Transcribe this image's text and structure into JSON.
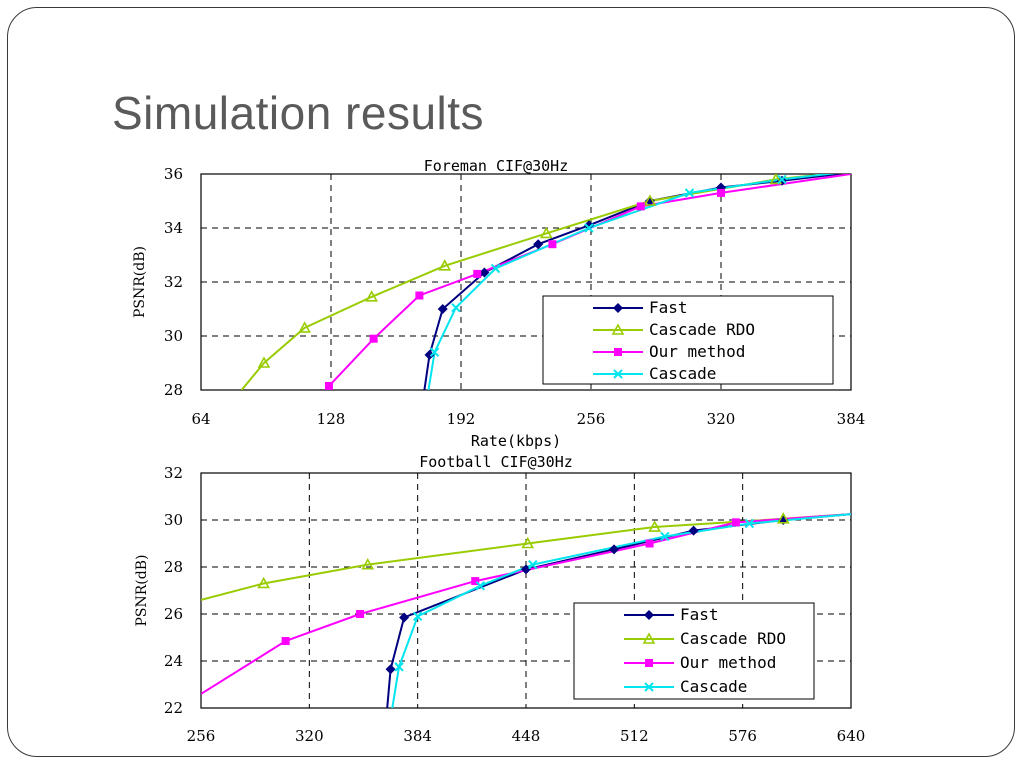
{
  "slide": {
    "title": "Simulation results"
  },
  "chart_data": [
    {
      "type": "line",
      "title": "Foreman CIF@30Hz",
      "xlabel": "Rate(kbps)",
      "ylabel": "PSNR(dB)",
      "xlim": [
        64,
        384
      ],
      "ylim": [
        28,
        36
      ],
      "xticks": [
        64,
        128,
        192,
        256,
        320,
        384
      ],
      "yticks": [
        28,
        30,
        32,
        34,
        36
      ],
      "grid": true,
      "legend_position": "bottom-right",
      "series": [
        {
          "name": "Fast",
          "color": "#000080",
          "marker": "diamond",
          "points": [
            [
              174,
              28
            ],
            [
              176.5,
              29.3
            ],
            [
              183,
              31
            ],
            [
              203.5,
              32.35
            ],
            [
              230,
              33.4
            ],
            [
              255,
              34.1
            ],
            [
              285,
              35
            ],
            [
              320,
              35.5
            ],
            [
              350,
              35.75
            ],
            [
              378,
              36
            ]
          ]
        },
        {
          "name": "Cascade RDO",
          "color": "#99CC00",
          "marker": "triangle",
          "points": [
            [
              84,
              28
            ],
            [
              95,
              29
            ],
            [
              115,
              30.3
            ],
            [
              148,
              31.45
            ],
            [
              184,
              32.6
            ],
            [
              234,
              33.8
            ],
            [
              285,
              35
            ],
            [
              347,
              35.8
            ],
            [
              384,
              36.1
            ]
          ]
        },
        {
          "name": "Our method",
          "color": "#FF00FF",
          "marker": "square",
          "points": [
            [
              127,
              28.15
            ],
            [
              149,
              29.9
            ],
            [
              171.5,
              31.5
            ],
            [
              200,
              32.3
            ],
            [
              237,
              33.4
            ],
            [
              280.5,
              34.8
            ],
            [
              320,
              35.3
            ],
            [
              384,
              36
            ]
          ]
        },
        {
          "name": "Cascade",
          "color": "#00E5EE",
          "marker": "x",
          "points": [
            [
              176,
              28
            ],
            [
              179,
              29.4
            ],
            [
              189.5,
              31.05
            ],
            [
              209,
              32.5
            ],
            [
              255,
              34
            ],
            [
              304.5,
              35.3
            ],
            [
              350,
              35.8
            ],
            [
              378,
              36.05
            ]
          ]
        }
      ]
    },
    {
      "type": "line",
      "title": "Football CIF@30Hz",
      "xlabel": "Rate(kbps)",
      "ylabel": "PSNR(dB)",
      "xlim": [
        256,
        640
      ],
      "ylim": [
        22,
        32
      ],
      "xticks": [
        256,
        320,
        384,
        448,
        512,
        576,
        640
      ],
      "yticks": [
        22,
        24,
        26,
        28,
        30,
        32
      ],
      "grid": true,
      "legend_position": "bottom-right",
      "series": [
        {
          "name": "Fast",
          "color": "#000080",
          "marker": "diamond",
          "points": [
            [
              366,
              22
            ],
            [
              368,
              23.65
            ],
            [
              376,
              25.85
            ],
            [
              448,
              27.9
            ],
            [
              500,
              28.75
            ],
            [
              547,
              29.55
            ],
            [
              600,
              30
            ],
            [
              640,
              30.25
            ]
          ]
        },
        {
          "name": "Cascade RDO",
          "color": "#99CC00",
          "marker": "triangle",
          "points": [
            [
              256,
              26.6
            ],
            [
              293,
              27.3
            ],
            [
              354.5,
              28.1
            ],
            [
              449,
              29
            ],
            [
              524,
              29.7
            ],
            [
              600,
              30.05
            ],
            [
              640,
              30.25
            ]
          ]
        },
        {
          "name": "Our method",
          "color": "#FF00FF",
          "marker": "square",
          "points": [
            [
              256,
              22.6
            ],
            [
              306,
              24.85
            ],
            [
              350,
              26
            ],
            [
              418,
              27.4
            ],
            [
              521,
              29
            ],
            [
              572,
              29.9
            ],
            [
              640,
              30.25
            ]
          ]
        },
        {
          "name": "Cascade",
          "color": "#00E5EE",
          "marker": "x",
          "points": [
            [
              369,
              22
            ],
            [
              373,
              23.75
            ],
            [
              384,
              25.9
            ],
            [
              421,
              27.2
            ],
            [
              452,
              28.1
            ],
            [
              530,
              29.3
            ],
            [
              580,
              29.85
            ],
            [
              640,
              30.25
            ]
          ]
        }
      ]
    }
  ]
}
